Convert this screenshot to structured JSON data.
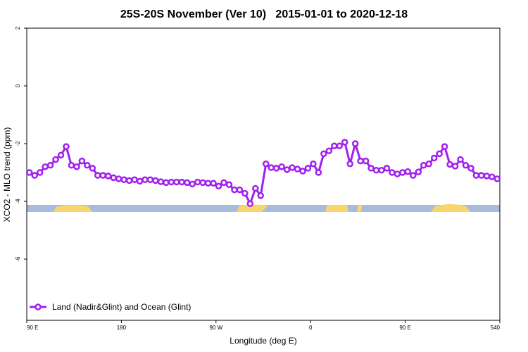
{
  "chart_data": {
    "type": "line",
    "title": "25S-20S November (Ver 10)   2015-01-01 to 2020-12-18",
    "x_label": "Longitude (deg E)",
    "y_label": "XCO2 - MLO trend (ppm)",
    "xlim": [
      90,
      540
    ],
    "ylim": [
      -8.12,
      2
    ],
    "xticks": [
      {
        "value": 90,
        "label": "90 E"
      },
      180,
      {
        "value": 270,
        "label": "90 W"
      },
      {
        "value": 360,
        "label": "0"
      },
      {
        "value": 450,
        "label": "90 E"
      },
      540
    ],
    "yticks": [
      2,
      0,
      -2,
      -4,
      -6
    ],
    "grid": false,
    "legend": "bottom-left",
    "x": [
      92.5,
      97.5,
      102.5,
      107.5,
      112.5,
      117.5,
      122.5,
      127.5,
      132.5,
      137.5,
      142.5,
      147.5,
      152.5,
      157.5,
      162.5,
      167.5,
      172.5,
      177.5,
      182.5,
      187.5,
      192.5,
      197.5,
      202.5,
      207.5,
      212.5,
      217.5,
      222.5,
      227.5,
      232.5,
      237.5,
      242.5,
      247.5,
      252.5,
      257.5,
      262.5,
      267.5,
      272.5,
      277.5,
      282.5,
      287.5,
      292.5,
      297.5,
      302.5,
      307.5,
      312.5,
      317.5,
      322.5,
      327.5,
      332.5,
      337.5,
      342.5,
      347.5,
      352.5,
      357.5,
      362.5,
      367.5,
      372.5,
      377.5,
      382.5,
      387.5,
      392.5,
      397.5,
      402.5,
      407.5,
      412.5,
      417.5,
      422.5,
      427.5,
      432.5,
      437.5,
      442.5,
      447.5,
      452.5,
      457.5,
      462.5,
      467.5,
      472.5,
      477.5,
      482.5,
      487.5,
      492.5,
      497.5,
      502.5,
      507.5,
      512.5,
      517.5,
      522.5,
      527.5,
      532.5,
      537.5
    ],
    "series": [
      {
        "name": "Land (Nadir&Glint) and Ocean (Glint)",
        "color": "#a020f0",
        "values": [
          -3.0,
          -3.1,
          -3.0,
          -2.8,
          -2.75,
          -2.55,
          -2.4,
          -2.1,
          -2.75,
          -2.8,
          -2.6,
          -2.75,
          -2.85,
          -3.1,
          -3.1,
          -3.12,
          -3.18,
          -3.22,
          -3.25,
          -3.28,
          -3.25,
          -3.3,
          -3.25,
          -3.25,
          -3.28,
          -3.32,
          -3.35,
          -3.33,
          -3.33,
          -3.33,
          -3.35,
          -3.4,
          -3.33,
          -3.35,
          -3.37,
          -3.37,
          -3.47,
          -3.35,
          -3.42,
          -3.6,
          -3.6,
          -3.72,
          -4.08,
          -3.55,
          -3.8,
          -2.7,
          -2.83,
          -2.85,
          -2.8,
          -2.9,
          -2.83,
          -2.88,
          -2.95,
          -2.85,
          -2.7,
          -3.0,
          -2.35,
          -2.25,
          -2.08,
          -2.08,
          -1.95,
          -2.7,
          -2.0,
          -2.6,
          -2.6,
          -2.85,
          -2.92,
          -2.92,
          -2.85,
          -3.0,
          -3.05,
          -3.0,
          -2.97,
          -3.1,
          -2.98,
          -2.75,
          -2.7,
          -2.5,
          -2.35,
          -2.1,
          -2.72,
          -2.78,
          -2.55,
          -2.75,
          -2.85,
          -3.1,
          -3.1,
          -3.12,
          -3.15,
          -3.22
        ]
      }
    ]
  }
}
